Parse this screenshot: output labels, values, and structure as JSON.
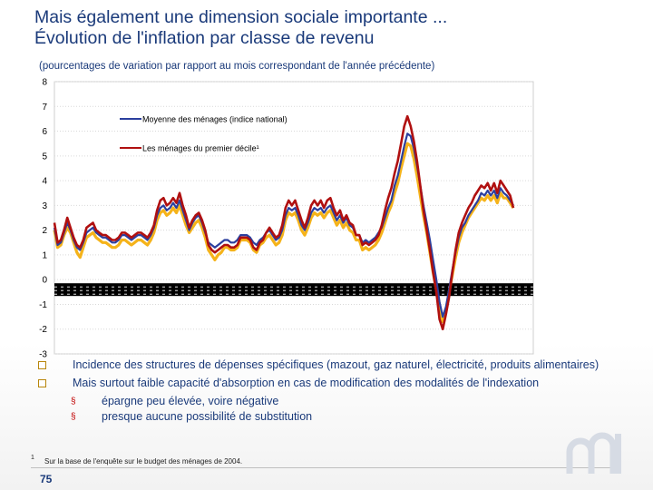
{
  "header": {
    "title_line1": "Mais également une dimension sociale importante ...",
    "title_line2": "Évolution de l'inflation par classe de revenu",
    "subtitle": "(pourcentages de variation par rapport au mois correspondant de l'année précédente)"
  },
  "bullets": [
    {
      "text": "Incidence des structures de dépenses spécifiques (mazout, gaz naturel, électricité, produits alimentaires)"
    },
    {
      "text": "Mais surtout faible capacité d'absorption en cas de modification des modalités de l'indexation"
    }
  ],
  "sub_bullets": [
    {
      "marker": "§",
      "text": "épargne peu élevée, voire négative"
    },
    {
      "marker": "§",
      "text": "presque aucune possibilité de substitution"
    }
  ],
  "footnote": {
    "marker": "1",
    "text": "Sur la base de l'enquête sur le budget des ménages de 2004."
  },
  "page_number": "75",
  "colors": {
    "blue": "#2b3f9e",
    "red": "#b01010",
    "yellow": "#f5b31a",
    "title": "#1a3a7a"
  },
  "chart_data": {
    "type": "line",
    "ylim": [
      -3,
      8
    ],
    "yticks": [
      "8",
      "7",
      "6",
      "5",
      "4",
      "3",
      "2",
      "1",
      "0",
      "-1",
      "-2",
      "-3"
    ],
    "grid": true,
    "legend": [
      {
        "name": "Moyenne des ménages (indice national)",
        "color": "#2b3f9e"
      },
      {
        "name": "Les ménages du premier décile¹",
        "color": "#b01010"
      }
    ],
    "series": [
      {
        "name": "Moyenne des ménages (indice national)",
        "color": "#2b3f9e",
        "values": [
          2.1,
          1.4,
          1.5,
          1.9,
          2.3,
          2.0,
          1.6,
          1.3,
          1.2,
          1.5,
          1.9,
          2.0,
          2.1,
          1.9,
          1.8,
          1.7,
          1.7,
          1.6,
          1.5,
          1.5,
          1.6,
          1.8,
          1.8,
          1.7,
          1.6,
          1.7,
          1.8,
          1.8,
          1.7,
          1.6,
          1.8,
          2.1,
          2.6,
          2.9,
          3.0,
          2.8,
          2.9,
          3.1,
          2.9,
          3.2,
          2.8,
          2.4,
          2.0,
          2.3,
          2.5,
          2.6,
          2.3,
          1.9,
          1.5,
          1.4,
          1.3,
          1.4,
          1.5,
          1.6,
          1.6,
          1.5,
          1.5,
          1.6,
          1.8,
          1.8,
          1.8,
          1.7,
          1.5,
          1.4,
          1.6,
          1.7,
          1.9,
          2.0,
          1.8,
          1.6,
          1.7,
          2.0,
          2.6,
          2.9,
          2.8,
          2.9,
          2.6,
          2.2,
          2.0,
          2.3,
          2.7,
          2.9,
          2.8,
          2.9,
          2.7,
          2.9,
          3.0,
          2.7,
          2.4,
          2.6,
          2.3,
          2.5,
          2.2,
          2.1,
          1.8,
          1.8,
          1.5,
          1.6,
          1.5,
          1.6,
          1.7,
          1.9,
          2.1,
          2.5,
          2.9,
          3.2,
          3.8,
          4.2,
          4.8,
          5.4,
          5.9,
          5.8,
          5.3,
          4.6,
          3.8,
          3.0,
          2.3,
          1.6,
          0.8,
          0.0,
          -0.9,
          -1.5,
          -1.1,
          -0.4,
          0.4,
          1.1,
          1.7,
          2.1,
          2.3,
          2.6,
          2.8,
          3.0,
          3.2,
          3.5,
          3.4,
          3.6,
          3.4,
          3.6,
          3.3,
          3.7,
          3.5,
          3.4,
          3.2,
          3.0
        ]
      },
      {
        "name": "Les ménages du premier décile¹",
        "color": "#b01010",
        "values": [
          2.3,
          1.5,
          1.6,
          2.0,
          2.5,
          2.1,
          1.7,
          1.4,
          1.3,
          1.6,
          2.1,
          2.2,
          2.3,
          2.0,
          1.9,
          1.8,
          1.8,
          1.7,
          1.6,
          1.6,
          1.7,
          1.9,
          1.9,
          1.8,
          1.7,
          1.8,
          1.9,
          1.9,
          1.8,
          1.7,
          1.9,
          2.2,
          2.8,
          3.2,
          3.3,
          3.0,
          3.1,
          3.3,
          3.1,
          3.5,
          3.0,
          2.6,
          2.1,
          2.4,
          2.6,
          2.7,
          2.4,
          2.0,
          1.4,
          1.2,
          1.1,
          1.2,
          1.3,
          1.4,
          1.4,
          1.3,
          1.3,
          1.4,
          1.7,
          1.7,
          1.7,
          1.6,
          1.3,
          1.2,
          1.5,
          1.6,
          1.9,
          2.1,
          1.9,
          1.7,
          1.8,
          2.2,
          2.9,
          3.2,
          3.0,
          3.2,
          2.8,
          2.4,
          2.1,
          2.5,
          3.0,
          3.2,
          3.0,
          3.2,
          2.9,
          3.2,
          3.3,
          2.9,
          2.6,
          2.8,
          2.4,
          2.6,
          2.3,
          2.2,
          1.8,
          1.8,
          1.4,
          1.5,
          1.4,
          1.5,
          1.6,
          1.8,
          2.2,
          2.8,
          3.3,
          3.7,
          4.3,
          4.8,
          5.5,
          6.2,
          6.6,
          6.2,
          5.6,
          4.8,
          3.8,
          2.8,
          2.0,
          1.2,
          0.3,
          -0.5,
          -1.6,
          -2.0,
          -1.4,
          -0.7,
          0.3,
          1.2,
          1.9,
          2.3,
          2.6,
          2.9,
          3.1,
          3.4,
          3.6,
          3.8,
          3.7,
          3.9,
          3.6,
          3.9,
          3.5,
          4.0,
          3.8,
          3.6,
          3.4,
          2.9
        ]
      },
      {
        "name": "",
        "color": "#f5b31a",
        "values": [
          2.0,
          1.3,
          1.4,
          1.8,
          2.1,
          1.9,
          1.5,
          1.1,
          0.9,
          1.3,
          1.7,
          1.8,
          1.9,
          1.7,
          1.6,
          1.5,
          1.5,
          1.4,
          1.3,
          1.3,
          1.4,
          1.6,
          1.6,
          1.5,
          1.4,
          1.5,
          1.6,
          1.6,
          1.5,
          1.4,
          1.6,
          1.9,
          2.4,
          2.7,
          2.8,
          2.6,
          2.7,
          2.9,
          2.7,
          3.0,
          2.6,
          2.2,
          1.9,
          2.1,
          2.3,
          2.4,
          2.1,
          1.7,
          1.2,
          1.0,
          0.8,
          1.0,
          1.1,
          1.3,
          1.3,
          1.2,
          1.2,
          1.3,
          1.6,
          1.6,
          1.6,
          1.5,
          1.2,
          1.1,
          1.4,
          1.5,
          1.7,
          1.8,
          1.6,
          1.4,
          1.5,
          1.8,
          2.4,
          2.7,
          2.6,
          2.7,
          2.4,
          2.0,
          1.8,
          2.1,
          2.5,
          2.7,
          2.6,
          2.7,
          2.5,
          2.7,
          2.8,
          2.5,
          2.2,
          2.4,
          2.1,
          2.3,
          2.0,
          1.9,
          1.6,
          1.6,
          1.2,
          1.3,
          1.2,
          1.3,
          1.4,
          1.6,
          1.9,
          2.3,
          2.7,
          3.0,
          3.5,
          3.9,
          4.5,
          5.0,
          5.5,
          5.4,
          4.9,
          4.2,
          3.4,
          2.6,
          1.9,
          1.1,
          0.3,
          -0.4,
          -1.2,
          -1.7,
          -1.3,
          -0.5,
          0.2,
          0.9,
          1.5,
          1.9,
          2.2,
          2.5,
          2.7,
          2.9,
          3.1,
          3.3,
          3.2,
          3.4,
          3.2,
          3.4,
          3.1,
          3.5,
          3.3,
          3.3,
          3.1,
          2.9
        ]
      }
    ]
  }
}
